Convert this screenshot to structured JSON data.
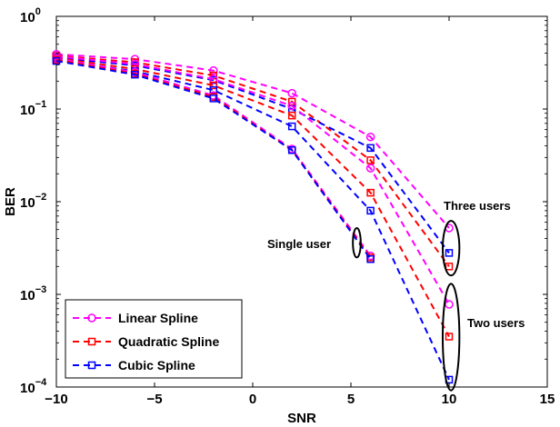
{
  "chart_data": {
    "type": "line",
    "title": "",
    "xlabel": "SNR",
    "ylabel": "BER",
    "xlim": [
      -10,
      15
    ],
    "ylim": [
      0.0001,
      1
    ],
    "yscale": "log",
    "grid": false,
    "legend_position": "bottom-left",
    "x_ticks": [
      -10,
      -5,
      0,
      5,
      10,
      15
    ],
    "x_tick_labels": [
      "−10",
      "−5",
      "0",
      "5",
      "10",
      "15"
    ],
    "y_ticks": [
      0.0001,
      0.001,
      0.01,
      0.1,
      1
    ],
    "y_tick_labels": [
      {
        "base": "10",
        "exp": "−4"
      },
      {
        "base": "10",
        "exp": "−3"
      },
      {
        "base": "10",
        "exp": "−2"
      },
      {
        "base": "10",
        "exp": "−1"
      },
      {
        "base": "10",
        "exp": "0"
      }
    ],
    "x": [
      -10,
      -6,
      -2,
      2,
      6,
      10
    ],
    "series": [
      {
        "name": "Linear Spline",
        "color": "#ff00ff",
        "marker": "circle",
        "group": "Three users",
        "values": [
          0.39,
          0.345,
          0.26,
          0.148,
          0.05,
          0.0052
        ]
      },
      {
        "name": "Quadratic Spline",
        "color": "#ff0000",
        "marker": "square",
        "group": "Three users",
        "values": [
          0.375,
          0.32,
          0.23,
          0.12,
          0.028,
          0.002
        ]
      },
      {
        "name": "Cubic Spline",
        "color": "#0000ff",
        "marker": "square",
        "group": "Three users",
        "values": [
          0.36,
          0.295,
          0.205,
          0.1,
          0.038,
          0.0028
        ]
      },
      {
        "name": "Linear Spline",
        "color": "#ff00ff",
        "marker": "circle",
        "group": "Two users",
        "values": [
          0.37,
          0.305,
          0.21,
          0.108,
          0.023,
          0.00078
        ]
      },
      {
        "name": "Quadratic Spline",
        "color": "#ff0000",
        "marker": "square",
        "group": "Two users",
        "values": [
          0.355,
          0.27,
          0.18,
          0.085,
          0.0125,
          0.00035
        ]
      },
      {
        "name": "Cubic Spline",
        "color": "#0000ff",
        "marker": "square",
        "group": "Two users",
        "values": [
          0.34,
          0.255,
          0.16,
          0.065,
          0.008,
          0.00012
        ]
      },
      {
        "name": "Linear Spline",
        "color": "#ff00ff",
        "marker": "circle",
        "group": "Single user",
        "values": [
          0.35,
          0.25,
          0.14,
          0.037,
          0.0026,
          null
        ]
      },
      {
        "name": "Quadratic Spline",
        "color": "#ff0000",
        "marker": "square",
        "group": "Single user",
        "values": [
          0.34,
          0.24,
          0.135,
          0.036,
          0.0025,
          null
        ]
      },
      {
        "name": "Cubic Spline",
        "color": "#0000ff",
        "marker": "square",
        "group": "Single user",
        "values": [
          0.33,
          0.235,
          0.13,
          0.036,
          0.0024,
          null
        ]
      }
    ],
    "legend": [
      {
        "label": "Linear Spline",
        "color": "#ff00ff",
        "marker": "circle"
      },
      {
        "label": "Quadratic Spline",
        "color": "#ff0000",
        "marker": "square"
      },
      {
        "label": "Cubic Spline",
        "color": "#0000ff",
        "marker": "square"
      }
    ],
    "annotations": [
      {
        "text": "Three users",
        "ellipse_center": [
          10.1,
          0.0028
        ],
        "ellipse_span_x": 0.85,
        "ellipse_span_y": [
          0.0016,
          0.0062
        ]
      },
      {
        "text": "Two users",
        "ellipse_center": [
          10.1,
          0.00035
        ],
        "ellipse_span_x": 0.85,
        "ellipse_span_y": [
          9.2e-05,
          0.0013
        ]
      },
      {
        "text": "Single user",
        "ellipse_center": [
          5.3,
          0.0035
        ],
        "ellipse_span_x": 0.4,
        "ellipse_span_y": [
          0.0025,
          0.0052
        ]
      }
    ]
  }
}
